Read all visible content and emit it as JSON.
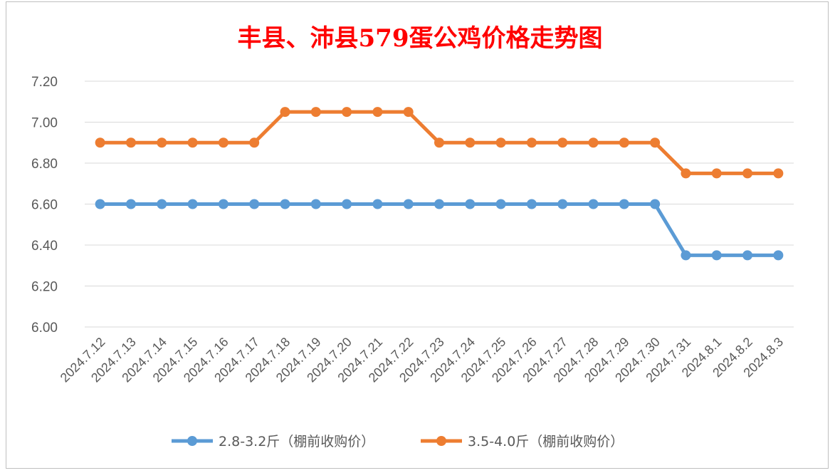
{
  "chart_data": {
    "type": "line",
    "title": "丰县、沛县579蛋公鸡价格走势图",
    "xlabel": "",
    "ylabel": "",
    "ylim": [
      6.0,
      7.2
    ],
    "yticks": [
      "7.20",
      "7.00",
      "6.80",
      "6.60",
      "6.40",
      "6.20",
      "6.00"
    ],
    "grid": true,
    "legend_position": "bottom",
    "categories": [
      "2024.7.12",
      "2024.7.13",
      "2024.7.14",
      "2024.7.15",
      "2024.7.16",
      "2024.7.17",
      "2024.7.18",
      "2024.7.19",
      "2024.7.20",
      "2024.7.21",
      "2024.7.22",
      "2024.7.23",
      "2024.7.24",
      "2024.7.25",
      "2024.7.26",
      "2024.7.27",
      "2024.7.28",
      "2024.7.29",
      "2024.7.30",
      "2024.7.31",
      "2024.8.1",
      "2024.8.2",
      "2024.8.3"
    ],
    "series": [
      {
        "name": "2.8-3.2斤（棚前收购价）",
        "color": "#5b9bd5",
        "values": [
          6.6,
          6.6,
          6.6,
          6.6,
          6.6,
          6.6,
          6.6,
          6.6,
          6.6,
          6.6,
          6.6,
          6.6,
          6.6,
          6.6,
          6.6,
          6.6,
          6.6,
          6.6,
          6.6,
          6.35,
          6.35,
          6.35,
          6.35
        ]
      },
      {
        "name": "3.5-4.0斤（棚前收购价）",
        "color": "#ed7d31",
        "values": [
          6.9,
          6.9,
          6.9,
          6.9,
          6.9,
          6.9,
          7.05,
          7.05,
          7.05,
          7.05,
          7.05,
          6.9,
          6.9,
          6.9,
          6.9,
          6.9,
          6.9,
          6.9,
          6.9,
          6.75,
          6.75,
          6.75,
          6.75
        ]
      }
    ],
    "title_color": "#ff0000",
    "axis_text_color": "#595959",
    "gridline_color": "#d9d9d9"
  }
}
